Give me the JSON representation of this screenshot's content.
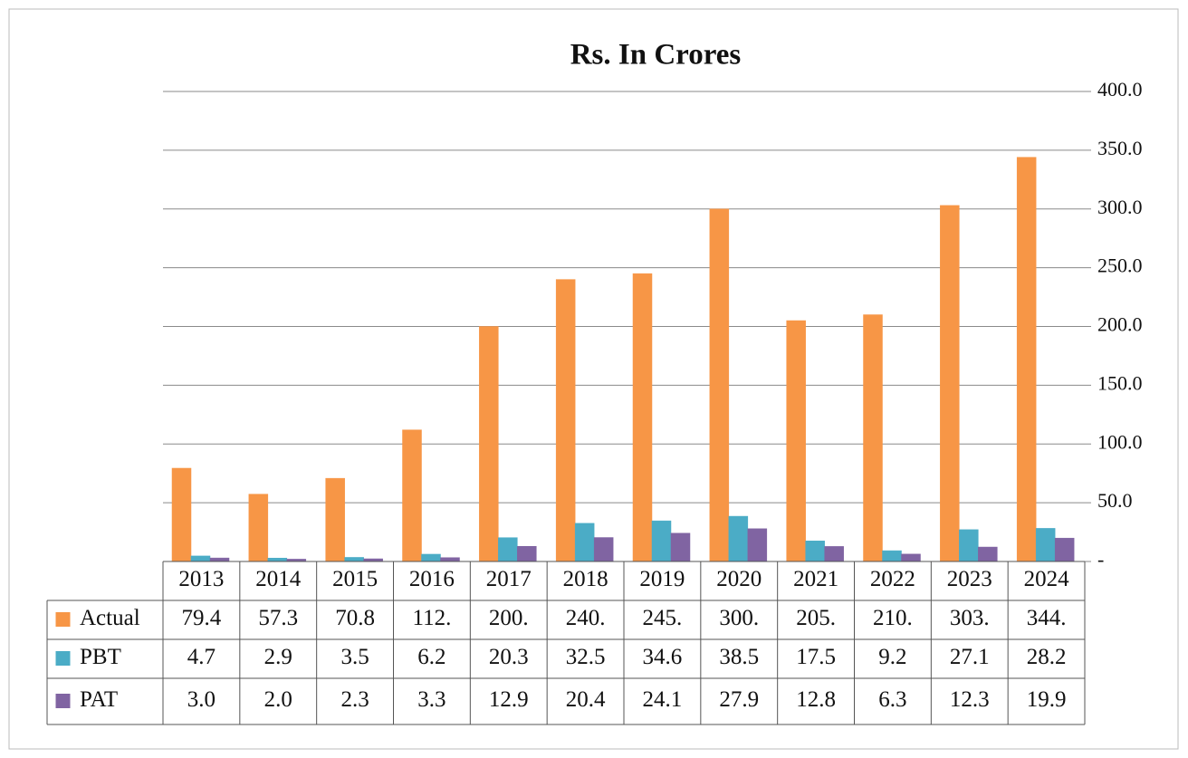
{
  "chart_data": {
    "type": "bar",
    "title": "Rs. In Crores",
    "categories": [
      "2013",
      "2014",
      "2015",
      "2016",
      "2017",
      "2018",
      "2019",
      "2020",
      "2021",
      "2022",
      "2023",
      "2024"
    ],
    "series": [
      {
        "name": "Actual",
        "color": "#f79646",
        "values": [
          79.4,
          57.3,
          70.8,
          112,
          200,
          240,
          245,
          300,
          205,
          210,
          303,
          344
        ],
        "value_labels": [
          "79.4",
          "57.3",
          "70.8",
          "112.",
          "200.",
          "240.",
          "245.",
          "300.",
          "205.",
          "210.",
          "303.",
          "344."
        ]
      },
      {
        "name": "PBT",
        "color": "#4bacc6",
        "values": [
          4.7,
          2.9,
          3.5,
          6.2,
          20.3,
          32.5,
          34.6,
          38.5,
          17.5,
          9.2,
          27.1,
          28.2
        ],
        "value_labels": [
          "4.7",
          "2.9",
          "3.5",
          "6.2",
          "20.3",
          "32.5",
          "34.6",
          "38.5",
          "17.5",
          "9.2",
          "27.1",
          "28.2"
        ]
      },
      {
        "name": "PAT",
        "color": "#8064a2",
        "values": [
          3.0,
          2.0,
          2.3,
          3.3,
          12.9,
          20.4,
          24.1,
          27.9,
          12.8,
          6.3,
          12.3,
          19.9
        ],
        "value_labels": [
          "3.0",
          "2.0",
          "2.3",
          "3.3",
          "12.9",
          "20.4",
          "24.1",
          "27.9",
          "12.8",
          "6.3",
          "12.3",
          "19.9"
        ]
      }
    ],
    "ylim": [
      0,
      400
    ],
    "yticks": [
      {
        "value": 0,
        "label": "-"
      },
      {
        "value": 50,
        "label": "50.0"
      },
      {
        "value": 100,
        "label": "100.0"
      },
      {
        "value": 150,
        "label": "150.0"
      },
      {
        "value": 200,
        "label": "200.0"
      },
      {
        "value": 250,
        "label": "250.0"
      },
      {
        "value": 300,
        "label": "300.0"
      },
      {
        "value": 350,
        "label": "350.0"
      },
      {
        "value": 400,
        "label": "400.0"
      }
    ],
    "grid": true
  }
}
